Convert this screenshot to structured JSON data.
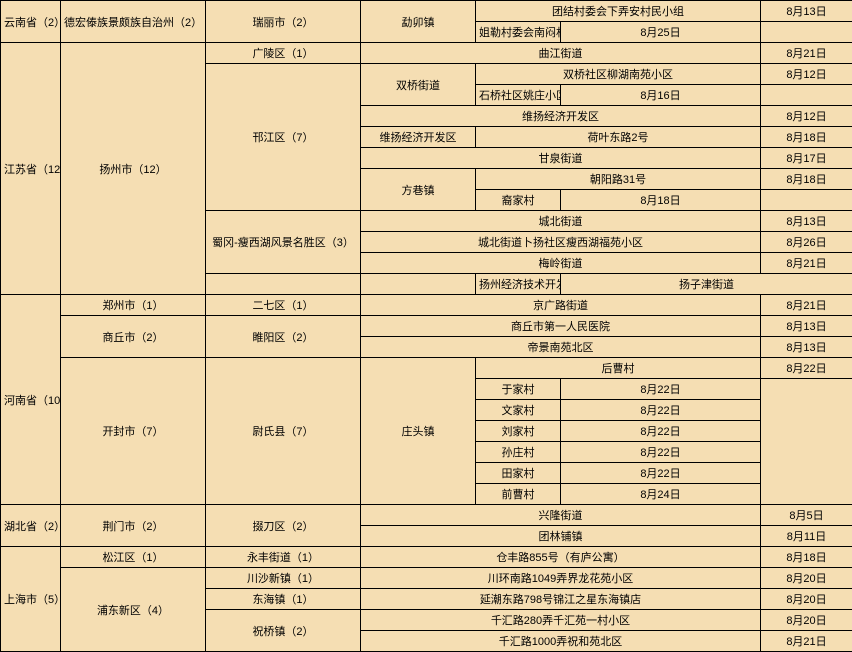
{
  "rows": [
    {
      "c1": {
        "t": "云南省（2）",
        "rs": 2
      },
      "c2": {
        "t": "德宏傣族景颇族自治州（2）",
        "rs": 2
      },
      "c3": {
        "t": "瑞丽市（2）",
        "rs": 2
      },
      "c4": {
        "t": "勐卯镇",
        "rs": 2
      },
      "c5": null,
      "c6": {
        "t": "团结村委会下弄安村民小组"
      },
      "c7": {
        "t": "8月13日"
      }
    },
    {
      "c6": {
        "t": "姐勒村委会南闷村民小组"
      },
      "c7": {
        "t": "8月25日"
      }
    },
    {
      "c1": {
        "t": "江苏省（12）",
        "rs": 12
      },
      "c2": {
        "t": "扬州市（12）",
        "rs": 12
      },
      "c3": {
        "t": "广陵区（1）"
      },
      "c4": null,
      "c6": {
        "t": "曲江街道",
        "cs": 3
      },
      "c7": {
        "t": "8月21日"
      }
    },
    {
      "c3": {
        "t": "邗江区（7）",
        "rs": 7
      },
      "c4": {
        "t": "双桥街道",
        "rs": 2
      },
      "c5": null,
      "c6": {
        "t": "双桥社区柳湖南苑小区"
      },
      "c7": {
        "t": "8月12日"
      }
    },
    {
      "c6": {
        "t": "石桥社区姚庄小区"
      },
      "c7": {
        "t": "8月16日"
      }
    },
    {
      "c4": null,
      "c6": {
        "t": "维扬经济开发区",
        "cs": 3
      },
      "c7": {
        "t": "8月12日"
      }
    },
    {
      "c4": {
        "t": "维扬经济开发区"
      },
      "c5": null,
      "c6": {
        "t": "荷叶东路2号"
      },
      "c7": {
        "t": "8月18日"
      }
    },
    {
      "c4": null,
      "c6": {
        "t": "甘泉街道",
        "cs": 3
      },
      "c7": {
        "t": "8月17日"
      }
    },
    {
      "c4": {
        "t": "方巷镇",
        "rs": 2
      },
      "c5": null,
      "c6": {
        "t": "朝阳路31号"
      },
      "c7": {
        "t": "8月18日"
      }
    },
    {
      "c6": {
        "t": "裔家村"
      },
      "c7": {
        "t": "8月18日"
      }
    },
    {
      "c3": {
        "t": "蜀冈-瘦西湖风景名胜区（3）",
        "rs": 3
      },
      "c4": null,
      "c6": {
        "t": "城北街道",
        "cs": 3
      },
      "c7": {
        "t": "8月13日"
      }
    },
    {
      "c4": null,
      "c6": {
        "t": "城北街道卜扬社区瘦西湖福苑小区",
        "cs": 3
      },
      "c7": {
        "t": "8月26日"
      }
    },
    {
      "c4": null,
      "c6": {
        "t": "梅岭街道",
        "cs": 3
      },
      "c7": {
        "t": "8月21日"
      }
    },
    {
      "c1": {
        "t": "",
        "bl": true
      },
      "c2": {
        "t": "",
        "bl": true
      },
      "c3": {
        "t": "扬州经济技术开发区（1）"
      },
      "c4": null,
      "c6": {
        "t": "扬子津街道",
        "cs": 3
      },
      "c7": {
        "t": "8月21日"
      }
    },
    {
      "c1": {
        "t": "河南省（10）",
        "rs": 10
      },
      "c2": {
        "t": "郑州市（1）"
      },
      "c3": {
        "t": "二七区（1）"
      },
      "c4": null,
      "c6": {
        "t": "京广路街道",
        "cs": 3
      },
      "c7": {
        "t": "8月21日"
      }
    },
    {
      "c2": {
        "t": "商丘市（2）",
        "rs": 2
      },
      "c3": {
        "t": "睢阳区（2）",
        "rs": 2
      },
      "c4": null,
      "c6": {
        "t": "商丘市第一人民医院",
        "cs": 3
      },
      "c7": {
        "t": "8月13日"
      }
    },
    {
      "c4": null,
      "c6": {
        "t": "帝景南苑北区",
        "cs": 3
      },
      "c7": {
        "t": "8月13日"
      }
    },
    {
      "c2": {
        "t": "开封市（7）",
        "rs": 7
      },
      "c3": {
        "t": "尉氏县（7）",
        "rs": 7
      },
      "c4": {
        "t": "庄头镇",
        "rs": 7
      },
      "c5": null,
      "c6": {
        "t": "后曹村"
      },
      "c7": {
        "t": "8月22日"
      }
    },
    {
      "c6": {
        "t": "于家村"
      },
      "c7": {
        "t": "8月22日"
      }
    },
    {
      "c6": {
        "t": "文家村"
      },
      "c7": {
        "t": "8月22日"
      }
    },
    {
      "c6": {
        "t": "刘家村"
      },
      "c7": {
        "t": "8月22日"
      }
    },
    {
      "c6": {
        "t": "孙庄村"
      },
      "c7": {
        "t": "8月22日"
      }
    },
    {
      "c6": {
        "t": "田家村"
      },
      "c7": {
        "t": "8月22日"
      }
    },
    {
      "c6": {
        "t": "前曹村"
      },
      "c7": {
        "t": "8月24日"
      }
    },
    {
      "c1": {
        "t": "湖北省（2）",
        "rs": 2
      },
      "c2": {
        "t": "荆门市（2）",
        "rs": 2
      },
      "c3": {
        "t": "掇刀区（2）",
        "rs": 2
      },
      "c4": null,
      "c6": {
        "t": "兴隆街道",
        "cs": 3
      },
      "c7": {
        "t": "8月5日"
      }
    },
    {
      "c4": null,
      "c6": {
        "t": "团林铺镇",
        "cs": 3
      },
      "c7": {
        "t": "8月11日"
      }
    },
    {
      "c1": {
        "t": "上海市（5）",
        "rs": 5
      },
      "c2": {
        "t": "松江区（1）"
      },
      "c3": {
        "t": "永丰街道（1）"
      },
      "c4": null,
      "c6": {
        "t": "仓丰路855号（有庐公寓）",
        "cs": 3
      },
      "c7": {
        "t": "8月18日"
      }
    },
    {
      "c2": {
        "t": "浦东新区（4）",
        "rs": 4
      },
      "c3": {
        "t": "川沙新镇（1）"
      },
      "c4": null,
      "c6": {
        "t": "川环南路1049弄界龙花苑小区",
        "cs": 3
      },
      "c7": {
        "t": "8月20日"
      }
    },
    {
      "c3": {
        "t": "东海镇（1）"
      },
      "c4": null,
      "c6": {
        "t": "延潮东路798号锦江之星东海镇店",
        "cs": 3
      },
      "c7": {
        "t": "8月20日"
      }
    },
    {
      "c3": {
        "t": "祝桥镇（2）",
        "rs": 2
      },
      "c4": null,
      "c6": {
        "t": "千汇路280弄千汇苑一村小区",
        "cs": 3
      },
      "c7": {
        "t": "8月20日"
      }
    },
    {
      "c4": null,
      "c6": {
        "t": "千汇路1000弄祝和苑北区",
        "cs": 3
      },
      "c7": {
        "t": "8月21日"
      }
    }
  ],
  "colors": {
    "bg": "#f5deb3",
    "border": "#000000",
    "text": "#000000"
  }
}
